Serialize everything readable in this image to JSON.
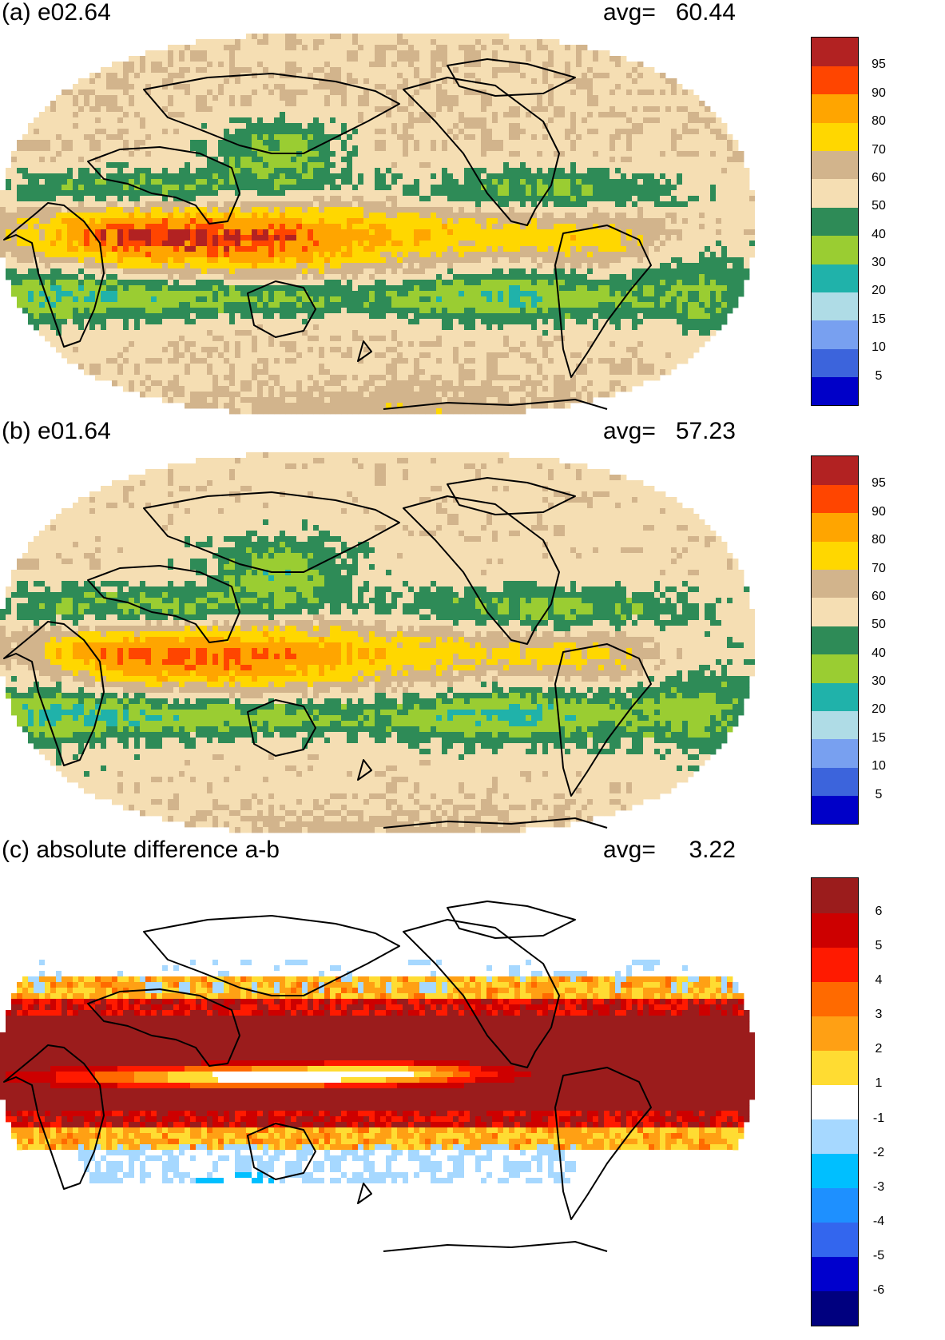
{
  "panels": [
    {
      "title": "(a) e02.64",
      "avg_label": "avg=",
      "avg_value": "60.44",
      "field": "a",
      "colorbar": {
        "colors": [
          "#0000c8",
          "#3c64dc",
          "#78a0f0",
          "#afdce6",
          "#20b2aa",
          "#9acd32",
          "#2e8b57",
          "#f5deb3",
          "#d2b48c",
          "#ffd700",
          "#ffa500",
          "#ff4500",
          "#b22222"
        ],
        "labels": [
          "5",
          "10",
          "15",
          "20",
          "30",
          "40",
          "50",
          "60",
          "70",
          "80",
          "90",
          "95"
        ]
      }
    },
    {
      "title": "(b) e01.64",
      "avg_label": "avg=",
      "avg_value": "57.23",
      "field": "b",
      "colorbar": {
        "colors": [
          "#0000c8",
          "#3c64dc",
          "#78a0f0",
          "#afdce6",
          "#20b2aa",
          "#9acd32",
          "#2e8b57",
          "#f5deb3",
          "#d2b48c",
          "#ffd700",
          "#ffa500",
          "#ff4500",
          "#b22222"
        ],
        "labels": [
          "5",
          "10",
          "15",
          "20",
          "30",
          "40",
          "50",
          "60",
          "70",
          "80",
          "90",
          "95"
        ]
      }
    },
    {
      "title": "(c) absolute difference a-b",
      "avg_label": "avg=",
      "avg_value": "3.22",
      "field": "diff",
      "colorbar": {
        "colors": [
          "#00007f",
          "#0000cd",
          "#3366ee",
          "#1e90ff",
          "#00bfff",
          "#a6d8ff",
          "#ffffff",
          "#ffdc32",
          "#ffa014",
          "#ff6a00",
          "#ff1a00",
          "#cd0000",
          "#9b1c1c"
        ],
        "labels": [
          "-6",
          "-5",
          "-4",
          "-3",
          "-2",
          "-1",
          "1",
          "2",
          "3",
          "4",
          "5",
          "6"
        ]
      }
    }
  ]
}
